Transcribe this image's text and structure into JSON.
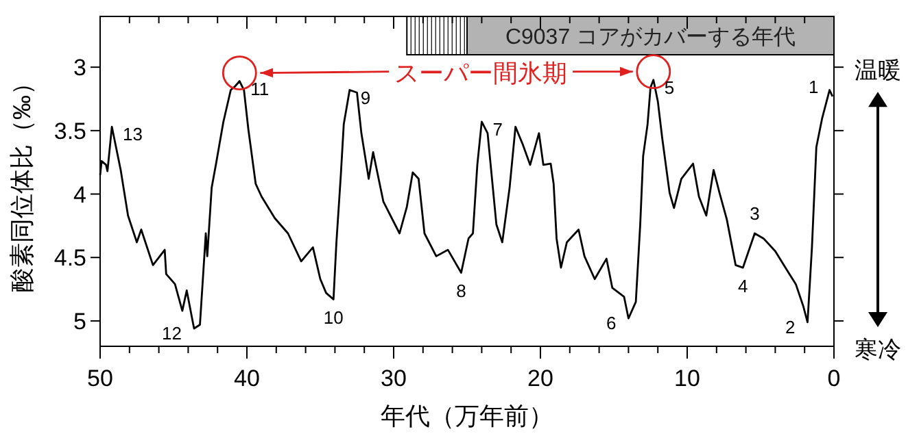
{
  "chart_data": {
    "type": "line",
    "xlabel": "年代（万年前）",
    "ylabel": "酸素同位体比（‰）",
    "xlim": [
      50,
      0
    ],
    "ylim": [
      5.2,
      2.6
    ],
    "xticks": [
      50,
      40,
      30,
      20,
      10,
      0
    ],
    "yticks": [
      3,
      3.5,
      4,
      4.5,
      5
    ],
    "series": [
      {
        "color": "#000000",
        "x": [
          50,
          49.9,
          49.6,
          49.5,
          49.2,
          48.6,
          48.1,
          47.5,
          47.2,
          46.4,
          45.6,
          45.5,
          44.9,
          44.4,
          44.1,
          43.6,
          43.2,
          42.8,
          42.7,
          42.4,
          42.1,
          41.6,
          41.1,
          40.8,
          40.5,
          40.2,
          39.9,
          39.4,
          39.0,
          38.1,
          37.2,
          36.3,
          35.5,
          35.0,
          34.6,
          34.1,
          33.9,
          33.6,
          33.4,
          33.0,
          32.5,
          32.2,
          31.7,
          31.4,
          30.7,
          29.6,
          29.1,
          28.7,
          28.3,
          27.9,
          27.1,
          26.3,
          25.4,
          24.9,
          24.6,
          24.3,
          24.0,
          23.6,
          23.3,
          23.0,
          22.6,
          22.1,
          21.7,
          21.2,
          20.7,
          20.1,
          19.8,
          19.3,
          19.1,
          18.9,
          18.6,
          18.2,
          17.4,
          17.0,
          16.3,
          15.5,
          15.1,
          14.3,
          14.0,
          13.5,
          13.2,
          13.0,
          12.7,
          12.5,
          12.3,
          12.0,
          11.7,
          11.2,
          10.9,
          10.4,
          9.6,
          9.2,
          8.7,
          8.2,
          7.8,
          7.3,
          6.7,
          6.2,
          5.4,
          4.8,
          4.0,
          3.2,
          2.6,
          2.1,
          1.8,
          1.5,
          1.2,
          0.8,
          0.3,
          0.1
        ],
        "values": [
          3.85,
          3.74,
          3.77,
          3.82,
          3.47,
          3.81,
          4.17,
          4.38,
          4.28,
          4.56,
          4.44,
          4.63,
          4.71,
          4.92,
          4.76,
          5.06,
          5.03,
          4.31,
          4.49,
          3.95,
          3.76,
          3.43,
          3.18,
          3.15,
          3.11,
          3.18,
          3.49,
          3.92,
          4.02,
          4.19,
          4.31,
          4.53,
          4.42,
          4.67,
          4.78,
          4.83,
          4.38,
          3.85,
          3.45,
          3.18,
          3.2,
          3.52,
          3.88,
          3.67,
          4.06,
          4.31,
          4.1,
          3.83,
          3.88,
          4.31,
          4.49,
          4.44,
          4.62,
          4.35,
          4.31,
          3.77,
          3.43,
          3.52,
          3.88,
          4.24,
          4.38,
          3.95,
          3.47,
          3.61,
          3.77,
          3.52,
          3.77,
          3.76,
          3.92,
          4.35,
          4.58,
          4.38,
          4.28,
          4.49,
          4.67,
          4.51,
          4.74,
          4.81,
          4.98,
          4.85,
          4.24,
          3.7,
          3.45,
          3.16,
          3.1,
          3.27,
          3.56,
          3.99,
          4.11,
          3.88,
          3.76,
          4.02,
          4.17,
          3.81,
          3.99,
          4.2,
          4.56,
          4.58,
          4.31,
          4.35,
          4.45,
          4.6,
          4.71,
          4.88,
          5.01,
          4.42,
          3.63,
          3.4,
          3.18,
          3.23
        ]
      }
    ],
    "bands": [
      {
        "axis": "x",
        "from": 29.1,
        "to": 25,
        "label": null,
        "color": "#ffffff"
      },
      {
        "axis": "x",
        "from": 25,
        "to": 0,
        "label": "C9037 コアがカバーする年代",
        "color": "#b3b3b3"
      }
    ],
    "annotations": [
      "スーパー間氷期",
      {
        "text": "13",
        "x": 49.2,
        "y": 3.47
      },
      {
        "text": "12",
        "x": 43.6,
        "y": 5.06
      },
      {
        "text": "11",
        "x": 40.5,
        "y": 3.11
      },
      {
        "text": "10",
        "x": 34.1,
        "y": 4.83
      },
      {
        "text": "9",
        "x": 33.0,
        "y": 3.18
      },
      {
        "text": "8",
        "x": 25.4,
        "y": 4.62
      },
      {
        "text": "7",
        "x": 24.0,
        "y": 3.43
      },
      {
        "text": "6",
        "x": 14.0,
        "y": 4.98
      },
      {
        "text": "5",
        "x": 12.3,
        "y": 3.1
      },
      {
        "text": "4",
        "x": 6.2,
        "y": 4.58
      },
      {
        "text": "3",
        "x": 5.4,
        "y": 4.31
      },
      {
        "text": "2",
        "x": 1.8,
        "y": 5.01
      },
      {
        "text": "1",
        "x": 0.3,
        "y": 3.18
      },
      "温暖",
      "寒冷"
    ]
  }
}
